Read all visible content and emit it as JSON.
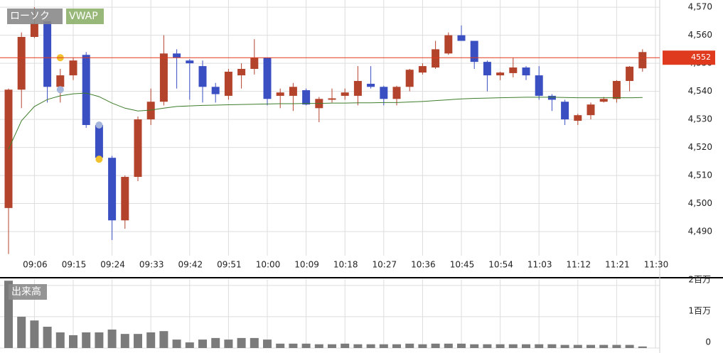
{
  "chart_data": {
    "type": "candlestick",
    "legend_candle": "ローソク",
    "legend_vwap": "VWAP",
    "categories": [
      null,
      null,
      "09:06",
      null,
      null,
      "09:15",
      null,
      null,
      "09:24",
      null,
      null,
      "09:33",
      null,
      null,
      "09:42",
      null,
      null,
      "09:51",
      null,
      null,
      "10:00",
      null,
      null,
      "10:09",
      null,
      null,
      "10:18",
      null,
      null,
      "10:27",
      null,
      null,
      "10:36",
      null,
      null,
      "10:45",
      null,
      null,
      "10:54",
      null,
      null,
      "11:03",
      null,
      null,
      "11:12",
      null,
      null,
      "11:21",
      null,
      null,
      "11:30"
    ],
    "open": [
      4498.4,
      4540.6,
      4559.4,
      4565,
      4541.6,
      4545.7,
      4553,
      4528,
      4516.3,
      4494,
      4509.5,
      4530,
      4536.3,
      4553.5,
      4551,
      4549,
      4541.6,
      4538.4,
      4545.7,
      4548,
      4552,
      4538.4,
      4538.4,
      4540.4,
      4534,
      4537,
      4538.4,
      4538.4,
      4542.7,
      4541.6,
      4537.3,
      4541.6,
      4546.7,
      4548.5,
      4553.5,
      4560,
      4558,
      4550.5,
      4545.7,
      4546.5,
      4548.5,
      4545.7,
      4538.4,
      4536.3,
      4529.5,
      4531.5,
      4536.3,
      4537.3,
      4543.7,
      4548.2,
      null
    ],
    "high": [
      4541,
      4561,
      4570,
      4565,
      4548,
      4552,
      4554,
      4529,
      4517,
      4510,
      4531,
      4541,
      4560,
      4555,
      4551.5,
      4551,
      4543,
      4548,
      4550,
      4558.6,
      4552,
      4541,
      4543,
      4541,
      4538,
      4541,
      4541,
      4549,
      4549,
      4542,
      4542,
      4548,
      4550,
      4558,
      4561,
      4563.5,
      4558,
      4551,
      4547,
      4552,
      4549,
      4549,
      4539,
      4537,
      4532,
      4536,
      4538,
      4544,
      4549,
      4555,
      null
    ],
    "low": [
      4482,
      4534,
      4559,
      4536,
      4536,
      4544,
      4527,
      4515,
      4487,
      4491,
      4508,
      4528,
      4535,
      4541,
      4537,
      4536,
      4536,
      4537,
      4541,
      4546,
      4535,
      4534,
      4533,
      4535,
      4529,
      4536,
      4537,
      4535,
      4541,
      4535,
      4535,
      4540,
      4546,
      4548,
      4553,
      4558,
      4548,
      4540,
      4544,
      4545,
      4544,
      4537,
      4533,
      4528,
      4528,
      4530,
      4536,
      4536,
      4540,
      4547,
      null
    ],
    "close": [
      4540.6,
      4559.4,
      4564.2,
      4541.6,
      4545.7,
      4551,
      4528,
      4516.3,
      4494,
      4509.5,
      4530,
      4536.3,
      4553.5,
      4552,
      4550,
      4541.6,
      4539,
      4547,
      4548,
      4552,
      4537.3,
      4539.6,
      4541.6,
      4535.3,
      4537.3,
      4537.5,
      4539.6,
      4543.7,
      4541.6,
      4537.3,
      4541.6,
      4547.7,
      4549,
      4555,
      4560,
      4558,
      4550.5,
      4545.7,
      4546.7,
      4548.5,
      4545.7,
      4538.4,
      4537,
      4530,
      4531.5,
      4535.3,
      4537.3,
      4543.7,
      4548.8,
      4554,
      null
    ],
    "up_color": "#b4432c",
    "down_color": "#3a4fc2",
    "vwap": {
      "name": "VWAP",
      "color": "#3e7d2a",
      "values": [
        4519.4,
        4529.5,
        4534.6,
        4537.1,
        4538.4,
        4539.1,
        4539.4,
        4538.1,
        4535.8,
        4534.0,
        4533.0,
        4533.3,
        4534.0,
        4534.6,
        4534.8,
        4535.0,
        4535.1,
        4535.2,
        4535.3,
        4535.4,
        4535.5,
        4535.6,
        4535.6,
        4535.7,
        4535.7,
        4535.8,
        4535.8,
        4535.9,
        4535.9,
        4536.0,
        4536.0,
        4536.2,
        4536.4,
        4536.7,
        4537.0,
        4537.3,
        4537.5,
        4537.6,
        4537.7,
        4537.8,
        4537.9,
        4537.9,
        4537.9,
        4537.8,
        4537.7,
        4537.7,
        4537.7,
        4537.7,
        4537.7,
        4537.8,
        null
      ]
    },
    "markers": [
      {
        "color": "#f2c12e",
        "values": [
          null,
          null,
          null,
          null,
          4552,
          null,
          null,
          4515.8,
          null,
          null,
          null,
          null,
          null,
          null,
          null,
          null,
          null,
          null,
          null,
          null,
          null,
          null,
          null,
          null,
          null,
          null,
          null,
          null,
          null,
          null,
          null,
          null,
          null,
          null,
          null,
          null,
          null,
          null,
          null,
          null,
          null,
          null,
          null,
          null,
          null,
          null,
          null,
          null,
          null,
          null,
          null
        ]
      },
      {
        "color": "#a6b5dc",
        "values": [
          null,
          null,
          null,
          null,
          4540.6,
          null,
          null,
          4528,
          null,
          null,
          null,
          null,
          null,
          null,
          null,
          null,
          null,
          null,
          null,
          null,
          null,
          null,
          null,
          null,
          null,
          null,
          null,
          null,
          null,
          null,
          null,
          null,
          null,
          null,
          null,
          null,
          null,
          null,
          null,
          null,
          null,
          null,
          null,
          null,
          null,
          null,
          null,
          null,
          null,
          null,
          null
        ]
      }
    ],
    "current_price": {
      "value": 4552,
      "color": "#e03a1e"
    },
    "ylim": [
      4481.4,
      4571.3
    ],
    "yticks": [
      {
        "value": 4490,
        "label": "4,490"
      },
      {
        "value": 4500,
        "label": "4,500"
      },
      {
        "value": 4510,
        "label": "4,510"
      },
      {
        "value": 4520,
        "label": "4,520"
      },
      {
        "value": 4530,
        "label": "4,530"
      },
      {
        "value": 4540,
        "label": "4,540"
      },
      {
        "value": 4550,
        "label": "4,550"
      },
      {
        "value": 4560,
        "label": "4,560"
      },
      {
        "value": 4570,
        "label": "4,570"
      }
    ],
    "grid": true,
    "volume": {
      "label": "出来高",
      "color": "#7b7b7b",
      "values": [
        2150000,
        1000000,
        880000,
        680000,
        500000,
        410000,
        500000,
        500000,
        590000,
        450000,
        450000,
        500000,
        540000,
        270000,
        180000,
        270000,
        320000,
        270000,
        320000,
        320000,
        270000,
        140000,
        140000,
        140000,
        120000,
        120000,
        140000,
        120000,
        120000,
        120000,
        120000,
        140000,
        120000,
        140000,
        140000,
        140000,
        120000,
        120000,
        120000,
        120000,
        120000,
        120000,
        120000,
        100000,
        100000,
        100000,
        100000,
        100000,
        100000,
        50000,
        null
      ],
      "ylim": [
        0,
        2200000
      ],
      "yticks": [
        {
          "value": 0,
          "label": "0"
        },
        {
          "value": 1000000,
          "label": "1百万"
        },
        {
          "value": 2000000,
          "label": "2百万"
        }
      ]
    }
  }
}
